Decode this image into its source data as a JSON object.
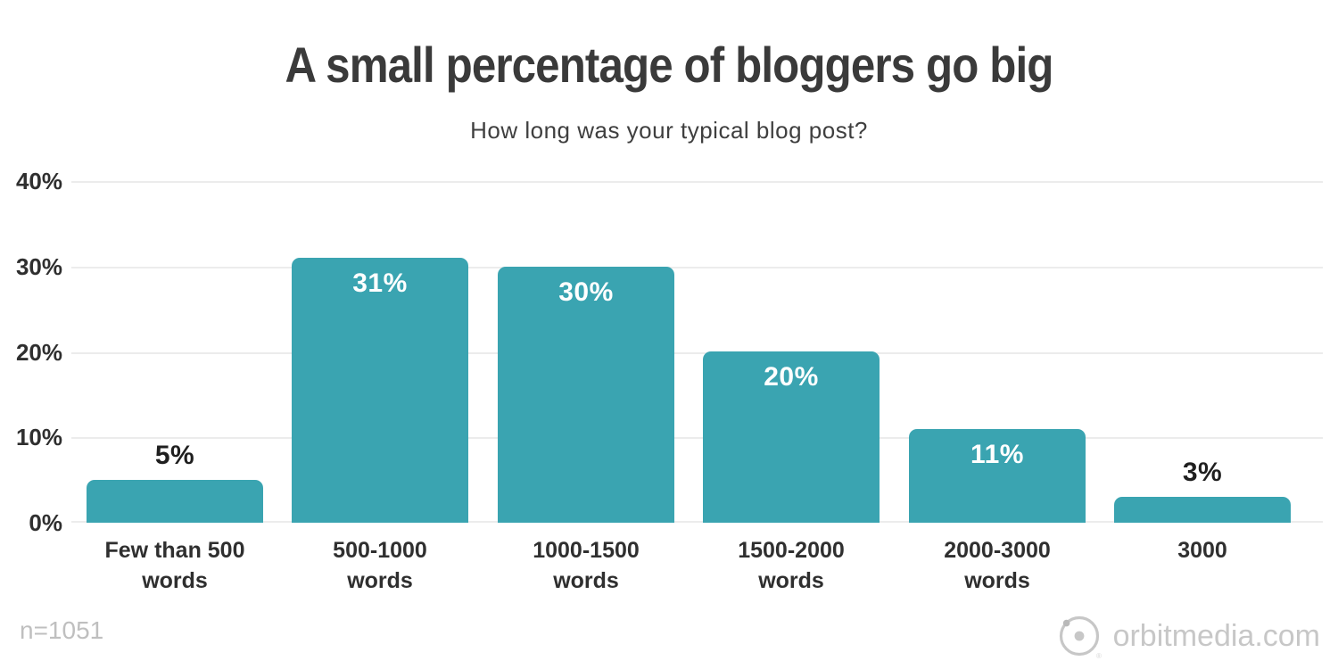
{
  "title": "A small percentage of bloggers go big",
  "subtitle": "How long was your typical blog post?",
  "footer": {
    "sample_size": "n=1051",
    "brand_text": "orbitmedia.com",
    "logo_mark": "®"
  },
  "chart_data": {
    "type": "bar",
    "title": "A small percentage of bloggers go big",
    "subtitle": "How long was your typical blog post?",
    "categories": [
      "Few than 500 words",
      "500-1000 words",
      "1000-1500 words",
      "1500-2000 words",
      "2000-3000 words",
      "3000"
    ],
    "values": [
      5,
      31,
      30,
      20,
      11,
      3
    ],
    "value_labels": [
      "5%",
      "31%",
      "30%",
      "20%",
      "11%",
      "3%"
    ],
    "xlabel": "",
    "ylabel": "",
    "ylim": [
      0,
      40
    ],
    "yticks": [
      {
        "value": 40,
        "label": "40%"
      },
      {
        "value": 30,
        "label": "30%"
      },
      {
        "value": 20,
        "label": "20%"
      },
      {
        "value": 10,
        "label": "10%"
      },
      {
        "value": 0,
        "label": "0%"
      }
    ],
    "grid": true,
    "legend": false,
    "annotation_note": "value labels shown in white inside tall bars, in black above short bars",
    "colors": {
      "bar": "#3AA4B1",
      "value_label_inside": "#FFFFFF",
      "value_label_outside": "#1f1f1f",
      "grid_line": "#ECECEC",
      "axis_text": "#2F2F2F",
      "title_text": "#3A3A3A",
      "footer_text": "#C7C7C7"
    }
  }
}
